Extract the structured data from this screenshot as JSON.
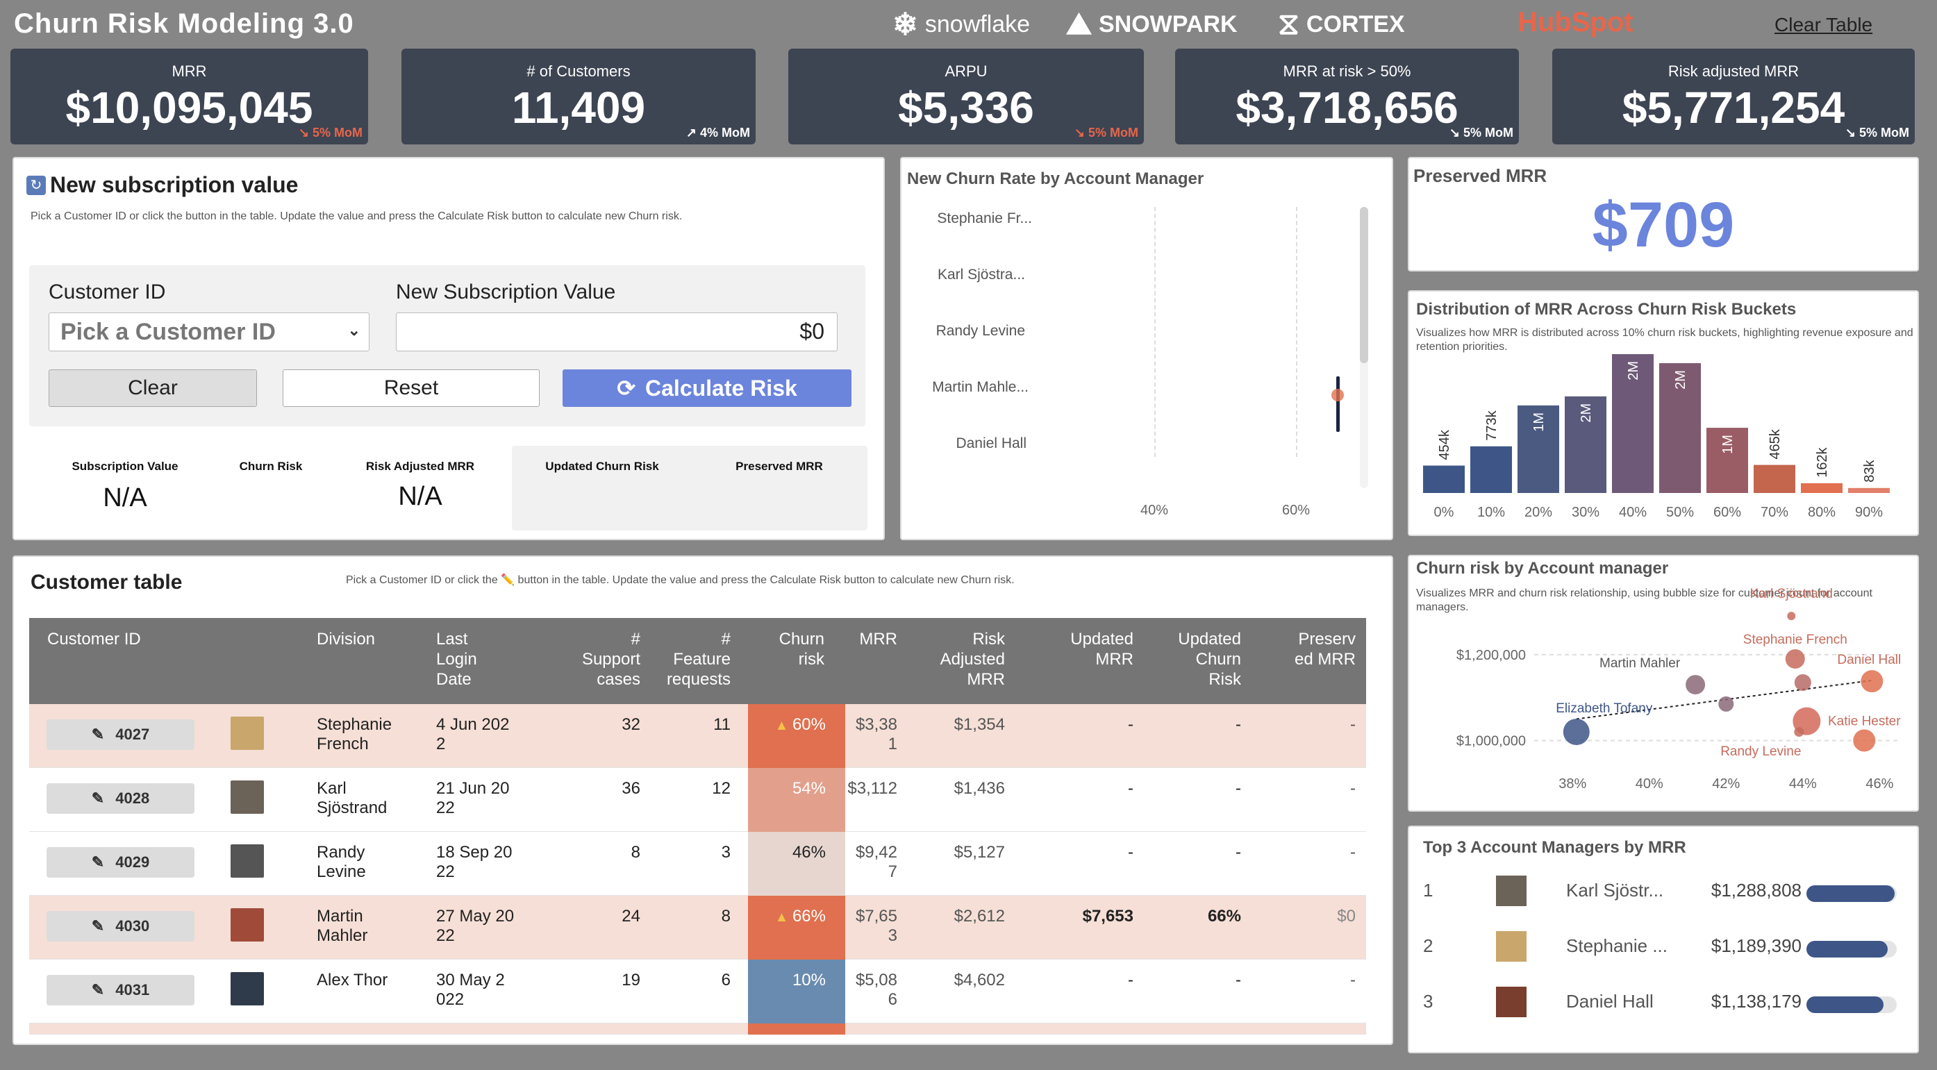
{
  "header": {
    "title": "Churn Risk Modeling 3.0",
    "logos": [
      "snowflake",
      "SNOWPARK",
      "CORTEX",
      "HubSpot"
    ],
    "clear_table": "Clear Table"
  },
  "kpis": [
    {
      "label": "MRR",
      "value": "$10,095,045",
      "delta": "↘ 5% MoM",
      "trend": "down"
    },
    {
      "label": "# of Customers",
      "value": "11,409",
      "delta": "↗ 4% MoM",
      "trend": "up"
    },
    {
      "label": "ARPU",
      "value": "$5,336",
      "delta": "↘ 5% MoM",
      "trend": "down"
    },
    {
      "label": "MRR at risk > 50%",
      "value": "$3,718,656",
      "delta": "↘ 5% MoM",
      "trend": "down-white"
    },
    {
      "label": "Risk adjusted MRR",
      "value": "$5,771,254",
      "delta": "↘ 5% MoM",
      "trend": "down-white"
    }
  ],
  "new_sub": {
    "title": "New subscription value",
    "subtitle": "Pick a Customer ID or click the button in the table. Update the value and press the Calculate Risk button to calculate new Churn risk.",
    "customer_id_label": "Customer ID",
    "customer_id_placeholder": "Pick a Customer ID",
    "new_value_label": "New Subscription Value",
    "new_value": "$0",
    "clear": "Clear",
    "reset": "Reset",
    "calculate": "Calculate Risk",
    "subscription_value_label": "Subscription Value",
    "subscription_value": "N/A",
    "churn_risk_label": "Churn Risk",
    "risk_adjusted_label": "Risk Adjusted MRR",
    "risk_adjusted_value": "N/A",
    "updated_churn_label": "Updated Churn Risk",
    "preserved_label": "Preserved MRR"
  },
  "new_churn_panel": {
    "title": "New Churn Rate by Account Manager",
    "managers": [
      "Stephanie Fr...",
      "Karl Sjöstra...",
      "Randy Levine",
      "Martin Mahle...",
      "Daniel Hall"
    ],
    "x_ticks": [
      "40%",
      "60%"
    ]
  },
  "preserved": {
    "title": "Preserved MRR",
    "value": "$709"
  },
  "distribution": {
    "title": "Distribution of MRR Across Churn Risk Buckets",
    "subtitle": "Visualizes how MRR is distributed across 10% churn risk buckets, highlighting revenue exposure and retention priorities.",
    "value_labels": [
      "454k",
      "773k",
      "1M",
      "2M",
      "2M",
      "2M",
      "1M",
      "465k",
      "162k",
      "83k"
    ],
    "x_labels": [
      "0%",
      "10%",
      "20%",
      "30%",
      "40%",
      "50%",
      "60%",
      "70%",
      "80%",
      "90%"
    ]
  },
  "chart_data": [
    {
      "type": "bar",
      "title": "Distribution of MRR Across Churn Risk Buckets",
      "categories": [
        "0%",
        "10%",
        "20%",
        "30%",
        "40%",
        "50%",
        "60%",
        "70%",
        "80%",
        "90%"
      ],
      "values": [
        454000,
        773000,
        1450000,
        1600000,
        2300000,
        2150000,
        1080000,
        465000,
        162000,
        83000
      ],
      "colors": [
        "#3e5687",
        "#3e5687",
        "#4b5a80",
        "#5a5a7c",
        "#6e5a78",
        "#7e5a70",
        "#9a5d66",
        "#c4654e",
        "#e0704f",
        "#e2806a"
      ]
    },
    {
      "type": "scatter",
      "title": "Churn risk by Account manager",
      "xlabel": "",
      "ylabel": "",
      "xlim": [
        0.37,
        0.465
      ],
      "ylim": [
        970000,
        1300000
      ],
      "points": [
        {
          "name": "Karl Sjöstrand",
          "x": 0.437,
          "y": 1290000,
          "size": 6,
          "color": "#c66b5c"
        },
        {
          "name": "Stephanie French",
          "x": 0.438,
          "y": 1190000,
          "size": 14,
          "color": "#c66b5c"
        },
        {
          "name": "Daniel Hall",
          "x": 0.458,
          "y": 1138000,
          "size": 16,
          "color": "#e0704f"
        },
        {
          "name": "Martin Mahler",
          "x": 0.412,
          "y": 1130000,
          "size": 14,
          "color": "#8a6a78"
        },
        {
          "name": "",
          "x": 0.44,
          "y": 1135000,
          "size": 12,
          "color": "#b66b66"
        },
        {
          "name": "",
          "x": 0.42,
          "y": 1085000,
          "size": 11,
          "color": "#8a6a78"
        },
        {
          "name": "",
          "x": 0.441,
          "y": 1045000,
          "size": 20,
          "color": "#d46a5a"
        },
        {
          "name": "Elizabeth Tofany",
          "x": 0.381,
          "y": 1020000,
          "size": 19,
          "color": "#3e5687"
        },
        {
          "name": "Randy Levine",
          "x": 0.439,
          "y": 1020000,
          "size": 7,
          "color": "#c66b5c"
        },
        {
          "name": "Katie Hester",
          "x": 0.456,
          "y": 1000000,
          "size": 16,
          "color": "#e0704f"
        }
      ],
      "x_ticks": [
        "38%",
        "40%",
        "42%",
        "44%",
        "46%"
      ],
      "y_ticks": [
        "$1,000,000",
        "$1,200,000"
      ]
    }
  ],
  "churn_by_mgr": {
    "title": "Churn risk by Account manager",
    "subtitle": "Visualizes MRR and churn risk relationship, using bubble size for customer count for account managers."
  },
  "top3": {
    "title": "Top 3 Account Managers by MRR",
    "rows": [
      {
        "rank": "1",
        "name": "Karl Sjöstr...",
        "mrr": "$1,288,808",
        "fill": 0.98
      },
      {
        "rank": "2",
        "name": "Stephanie ...",
        "mrr": "$1,189,390",
        "fill": 0.9
      },
      {
        "rank": "3",
        "name": "Daniel Hall",
        "mrr": "$1,138,179",
        "fill": 0.85
      }
    ]
  },
  "customer_table": {
    "title": "Customer table",
    "subtitle": "Pick a Customer ID or click the ✏️ button in the table. Update the value and press the Calculate Risk button to calculate new Churn risk.",
    "headers": {
      "customer_id": "Customer ID",
      "division": "Division",
      "last_login": "Last\nLogin\nDate",
      "support": "#\nSupport\ncases",
      "feature": "#\nFeature\nrequests",
      "churn": "Churn\nrisk",
      "mrr": "MRR",
      "risk_adj": "Risk\nAdjusted\nMRR",
      "upd_mrr": "Updated\nMRR",
      "upd_churn": "Updated\nChurn\nRisk",
      "preserved": "Preserv\ned MRR"
    },
    "rows": [
      {
        "id": "4027",
        "division": "Stephanie\nFrench",
        "login": "4 Jun 202\n2",
        "support": "32",
        "feature": "11",
        "churn": "60%",
        "warn": true,
        "churn_color": "#e0704f",
        "mrr": "$3,38\n1",
        "risk_adj": "$1,354",
        "upd_mrr": "-",
        "upd_churn": "-",
        "preserved": "-",
        "highlight": true,
        "avatar": "#c9a66b"
      },
      {
        "id": "4028",
        "division": "Karl\nSjöstrand",
        "login": "21 Jun 20\n22",
        "support": "36",
        "feature": "12",
        "churn": "54%",
        "warn": false,
        "churn_color": "#e2a08c",
        "mrr": "$3,112",
        "risk_adj": "$1,436",
        "upd_mrr": "-",
        "upd_churn": "-",
        "preserved": "-",
        "highlight": false,
        "avatar": "#6b6258"
      },
      {
        "id": "4029",
        "division": "Randy\nLevine",
        "login": "18 Sep 20\n22",
        "support": "8",
        "feature": "3",
        "churn": "46%",
        "warn": false,
        "churn_color": "#e6d6cf",
        "mrr": "$9,42\n7",
        "risk_adj": "$5,127",
        "upd_mrr": "-",
        "upd_churn": "-",
        "preserved": "-",
        "highlight": false,
        "avatar": "#555"
      },
      {
        "id": "4030",
        "division": "Martin\nMahler",
        "login": "27 May 20\n22",
        "support": "24",
        "feature": "8",
        "churn": "66%",
        "warn": true,
        "churn_color": "#e0704f",
        "mrr": "$7,65\n3",
        "risk_adj": "$2,612",
        "upd_mrr": "$7,653",
        "upd_churn": "66%",
        "preserved": "$0",
        "highlight": true,
        "avatar": "#a04a3a"
      },
      {
        "id": "4031",
        "division": "Alex Thor",
        "login": "30 May 2\n022",
        "support": "19",
        "feature": "6",
        "churn": "10%",
        "warn": false,
        "churn_color": "#6a8bb0",
        "mrr": "$5,08\n6",
        "risk_adj": "$4,602",
        "upd_mrr": "-",
        "upd_churn": "-",
        "preserved": "-",
        "highlight": false,
        "avatar": "#2f3b4a"
      }
    ]
  }
}
